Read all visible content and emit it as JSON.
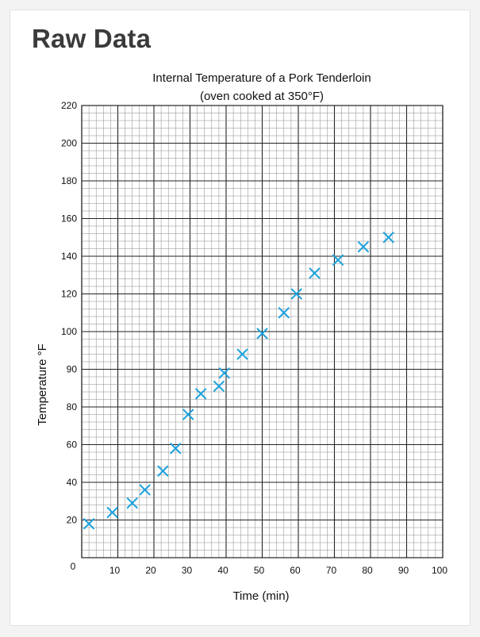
{
  "page": {
    "title": "Raw Data"
  },
  "chart_data": {
    "type": "scatter",
    "title": "Internal Temperature of a Pork Tenderloin",
    "subtitle": "(oven cooked at 350°F)",
    "xlabel": "Time (min)",
    "ylabel": "Temperature  °F",
    "origin_label": "0",
    "x_ticks": [
      {
        "value": 10,
        "label": "10"
      },
      {
        "value": 20,
        "label": "20"
      },
      {
        "value": 30,
        "label": "30"
      },
      {
        "value": 40,
        "label": "40"
      },
      {
        "value": 50,
        "label": "50"
      },
      {
        "value": 60,
        "label": "60"
      },
      {
        "value": 70,
        "label": "70"
      },
      {
        "value": 80,
        "label": "80"
      },
      {
        "value": 90,
        "label": "90"
      },
      {
        "value": 100,
        "label": "100"
      }
    ],
    "y_ticks": [
      {
        "label": "20"
      },
      {
        "label": "40"
      },
      {
        "label": "60"
      },
      {
        "label": "80"
      },
      {
        "label": "90"
      },
      {
        "label": "100"
      },
      {
        "label": "120"
      },
      {
        "label": "140"
      },
      {
        "label": "160"
      },
      {
        "label": "180"
      },
      {
        "label": "200"
      },
      {
        "label": "220"
      }
    ],
    "xlim": [
      0,
      100
    ],
    "y_divisions": 12,
    "grid": true,
    "marker": "x",
    "marker_color": "#1ea3dc",
    "points": [
      {
        "x": 2,
        "y": 18
      },
      {
        "x": 8.5,
        "y": 24
      },
      {
        "x": 14,
        "y": 29
      },
      {
        "x": 17.5,
        "y": 36
      },
      {
        "x": 22.5,
        "y": 46
      },
      {
        "x": 26,
        "y": 58
      },
      {
        "x": 29.5,
        "y": 76
      },
      {
        "x": 33,
        "y": 87
      },
      {
        "x": 38,
        "y": 91
      },
      {
        "x": 39.5,
        "y": 98
      },
      {
        "x": 44.5,
        "y": 108
      },
      {
        "x": 50,
        "y": 119
      },
      {
        "x": 56,
        "y": 130
      },
      {
        "x": 59.5,
        "y": 140
      },
      {
        "x": 64.5,
        "y": 151
      },
      {
        "x": 71,
        "y": 158
      },
      {
        "x": 78,
        "y": 165
      },
      {
        "x": 85,
        "y": 170
      }
    ]
  }
}
